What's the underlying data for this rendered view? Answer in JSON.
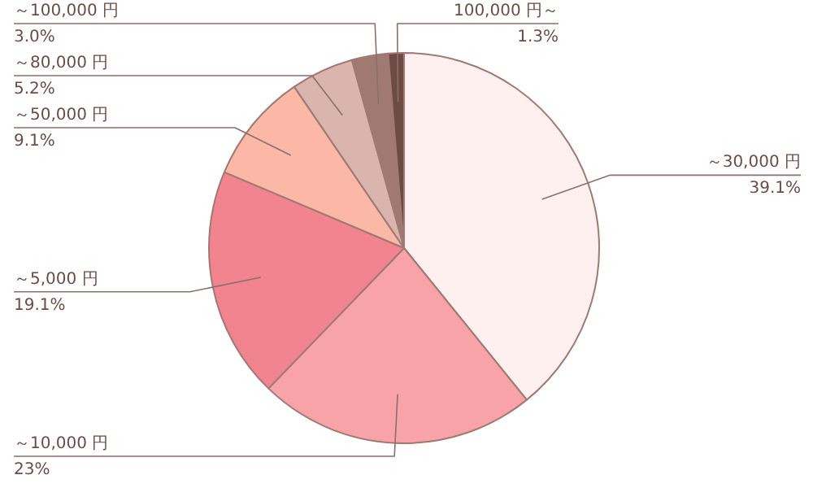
{
  "chart_data": {
    "type": "pie",
    "categories": [
      "～30,000 円",
      "～10,000 円",
      "～5,000 円",
      "～50,000 円",
      "～80,000 円",
      "～100,000 円",
      "100,000 円～"
    ],
    "values": [
      39.1,
      23,
      19.1,
      9.1,
      5.2,
      3.0,
      1.3
    ],
    "value_labels": [
      "39.1%",
      "23%",
      "19.1%",
      "9.1%",
      "5.2%",
      "3.0%",
      "1.3%"
    ],
    "colors": [
      "#fdf0ef",
      "#f7a3a8",
      "#f1848e",
      "#fbb8a6",
      "#d9b5ad",
      "#a07a72",
      "#6e4a44"
    ]
  }
}
